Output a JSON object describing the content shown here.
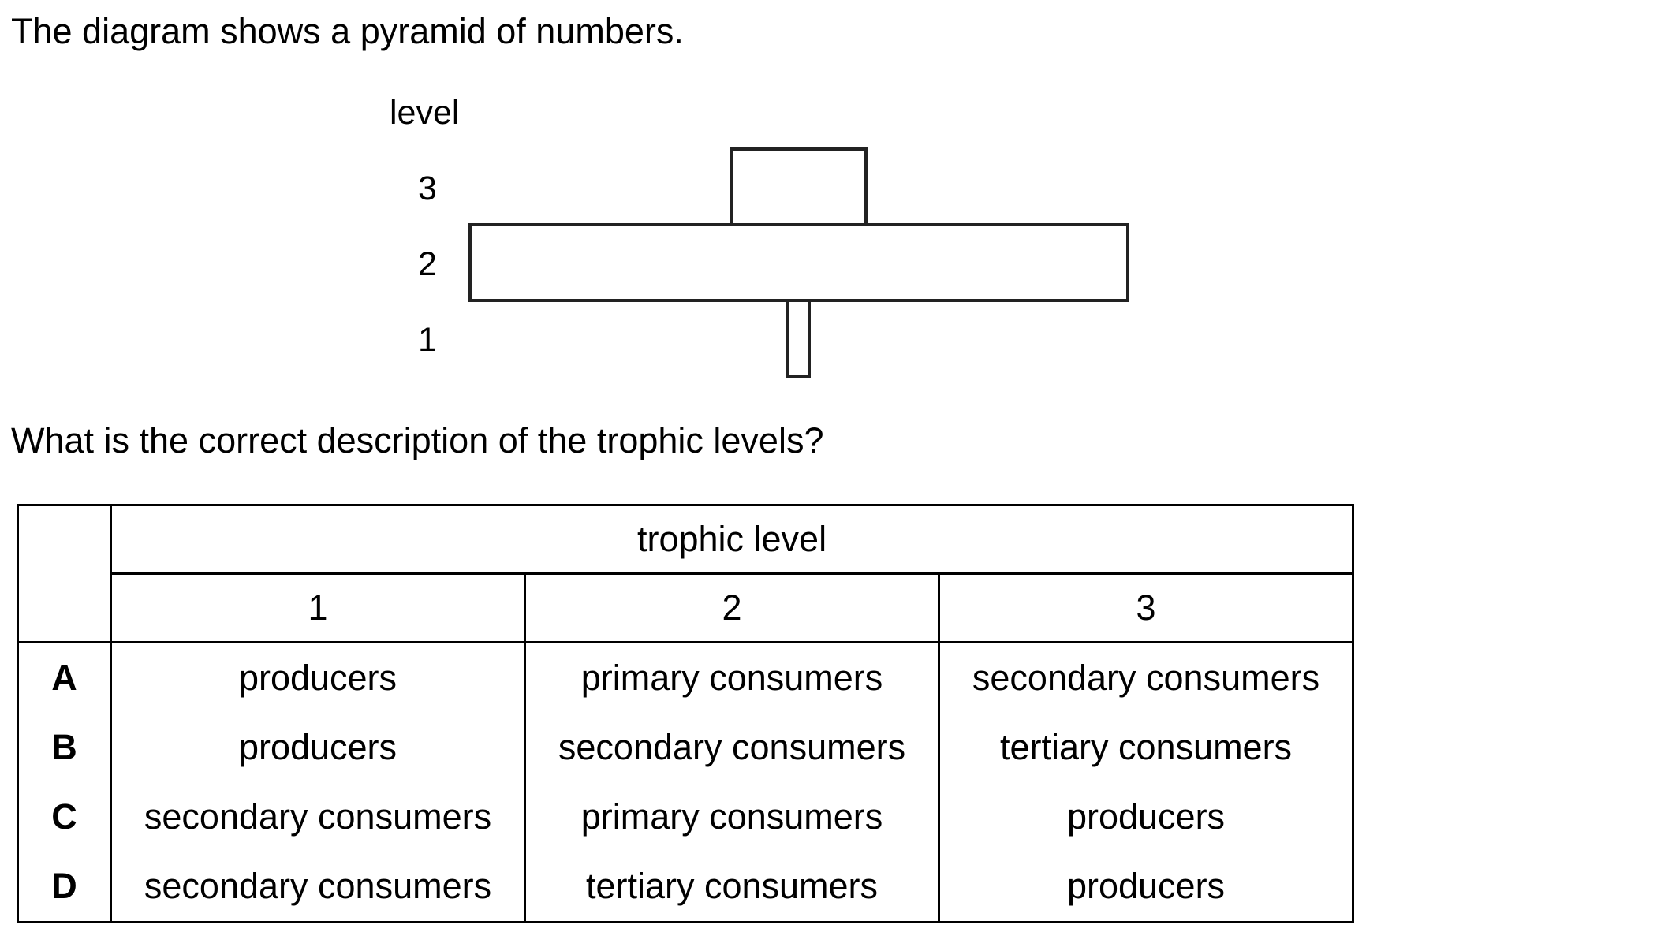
{
  "intro_text": "The diagram shows a pyramid of numbers.",
  "pyramid": {
    "axis_label": "level",
    "levels": [
      {
        "number": "3",
        "relative_width": 0.21
      },
      {
        "number": "2",
        "relative_width": 1.0
      },
      {
        "number": "1",
        "relative_width": 0.04
      }
    ]
  },
  "question_text": "What is the correct description of the trophic levels?",
  "table": {
    "group_header": "trophic level",
    "column_headers": [
      "1",
      "2",
      "3"
    ],
    "rows": [
      {
        "key": "A",
        "cells": [
          "producers",
          "primary consumers",
          "secondary consumers"
        ]
      },
      {
        "key": "B",
        "cells": [
          "producers",
          "secondary consumers",
          "tertiary consumers"
        ]
      },
      {
        "key": "C",
        "cells": [
          "secondary consumers",
          "primary consumers",
          "producers"
        ]
      },
      {
        "key": "D",
        "cells": [
          "secondary consumers",
          "tertiary consumers",
          "producers"
        ]
      }
    ]
  }
}
